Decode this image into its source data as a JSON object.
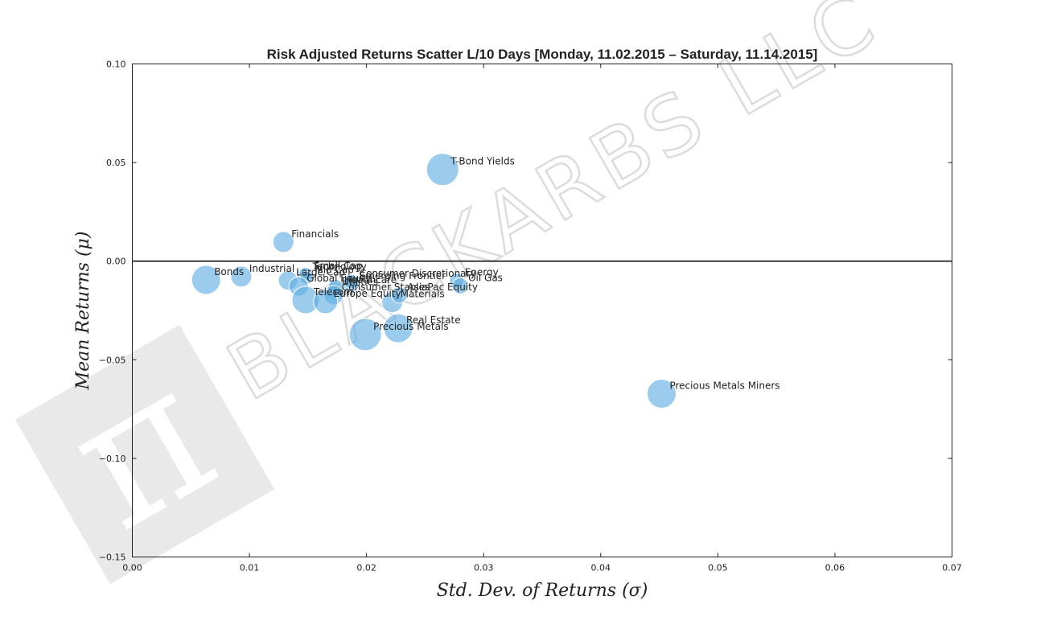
{
  "watermark": {
    "text": "BLACKARBS LLC",
    "logo_glyph": "π"
  },
  "chart_data": {
    "type": "scatter",
    "title": "Risk Adjusted Returns Scatter L/10 Days [Monday, 11.02.2015 – Saturday, 11.14.2015]",
    "xlabel": "Std. Dev. of Returns  (σ)",
    "ylabel": "Mean Returns  (μ)",
    "xlim": [
      0.0,
      0.07
    ],
    "ylim": [
      -0.15,
      0.1
    ],
    "xticks": [
      0.0,
      0.01,
      0.02,
      0.03,
      0.04,
      0.05,
      0.06,
      0.07
    ],
    "xtick_labels": [
      "0.00",
      "0.01",
      "0.02",
      "0.03",
      "0.04",
      "0.05",
      "0.06",
      "0.07"
    ],
    "yticks": [
      0.1,
      0.05,
      0.0,
      -0.05,
      -0.1,
      -0.15
    ],
    "ytick_labels": [
      "0.10",
      "0.05",
      "0.00",
      "−0.05",
      "−0.10",
      "−0.15"
    ],
    "zero_line": 0.0,
    "grid": false,
    "point_color": "#5dade2",
    "points": [
      {
        "label": "T-Bond Yields",
        "x": 0.0265,
        "y": 0.0465,
        "size": 20
      },
      {
        "label": "Financials",
        "x": 0.0129,
        "y": 0.0097,
        "size": 13
      },
      {
        "label": "Bonds",
        "x": 0.0063,
        "y": -0.0095,
        "size": 18
      },
      {
        "label": "Industrial",
        "x": 0.0093,
        "y": -0.0078,
        "size": 13
      },
      {
        "label": "Large Cap",
        "x": 0.0133,
        "y": -0.0098,
        "size": 12
      },
      {
        "label": "Technology",
        "x": 0.0147,
        "y": -0.0068,
        "size": 9
      },
      {
        "label": "Small Cap",
        "x": 0.0148,
        "y": -0.0065,
        "size": 8
      },
      {
        "label": "Mid Cap",
        "x": 0.0149,
        "y": -0.0085,
        "size": 8
      },
      {
        "label": "Global Equity",
        "x": 0.0142,
        "y": -0.0128,
        "size": 12
      },
      {
        "label": "Emerging Frontier",
        "x": 0.0187,
        "y": -0.0115,
        "size": 10
      },
      {
        "label": "Consumer Discretionary",
        "x": 0.0187,
        "y": -0.0103,
        "size": 9
      },
      {
        "label": "Utilities",
        "x": 0.0172,
        "y": -0.0145,
        "size": 10
      },
      {
        "label": "Healthcare",
        "x": 0.0174,
        "y": -0.0135,
        "size": 10
      },
      {
        "label": "Telecom",
        "x": 0.0148,
        "y": -0.0197,
        "size": 17
      },
      {
        "label": "Consumer Staples",
        "x": 0.0172,
        "y": -0.0172,
        "size": 12
      },
      {
        "label": "Europe Equity",
        "x": 0.0165,
        "y": -0.0205,
        "size": 15
      },
      {
        "label": "Materials",
        "x": 0.0222,
        "y": -0.0208,
        "size": 13
      },
      {
        "label": "AsiaPac Equity",
        "x": 0.0228,
        "y": -0.0172,
        "size": 10
      },
      {
        "label": "Energy",
        "x": 0.0277,
        "y": -0.0098,
        "size": 9
      },
      {
        "label": "Oil Gas",
        "x": 0.028,
        "y": -0.0125,
        "size": 10
      },
      {
        "label": "Real Estate",
        "x": 0.0227,
        "y": -0.034,
        "size": 18
      },
      {
        "label": "Precious Metals",
        "x": 0.0199,
        "y": -0.0372,
        "size": 20
      },
      {
        "label": "Precious Metals Miners",
        "x": 0.0452,
        "y": -0.0672,
        "size": 18
      }
    ]
  }
}
